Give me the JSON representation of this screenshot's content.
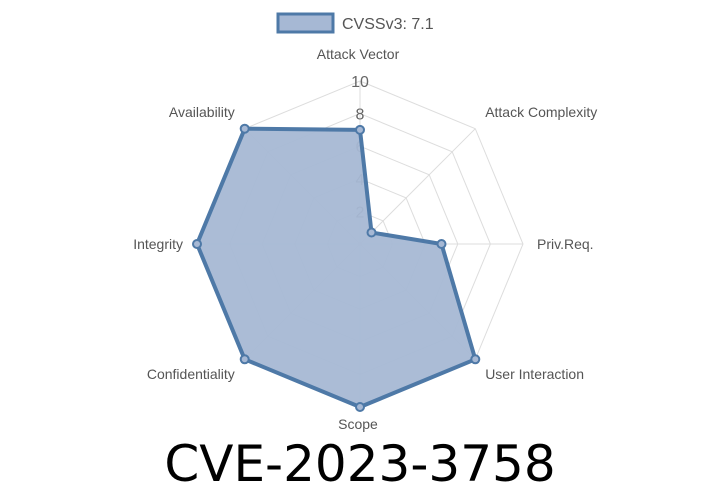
{
  "chart_data": {
    "type": "radar",
    "categories": [
      "Attack Vector",
      "Attack Complexity",
      "Priv.Req.",
      "User Interaction",
      "Scope",
      "Confidentiality",
      "Integrity",
      "Availability"
    ],
    "series": [
      {
        "name": "CVSSv3: 7.1",
        "values": [
          7,
          1,
          5,
          10,
          10,
          10,
          10,
          10
        ]
      }
    ],
    "rlim": [
      0,
      10
    ],
    "ticks": [
      "2",
      "4",
      "6",
      "8",
      "10"
    ],
    "grid": true,
    "legend": "top-center",
    "colors": {
      "line": "#4e79a7",
      "fill": "#a6b8d4",
      "grid": "#dddddd",
      "tick_text": "#666666",
      "label_text": "#555555"
    }
  },
  "title": "CVE-2023-3758"
}
